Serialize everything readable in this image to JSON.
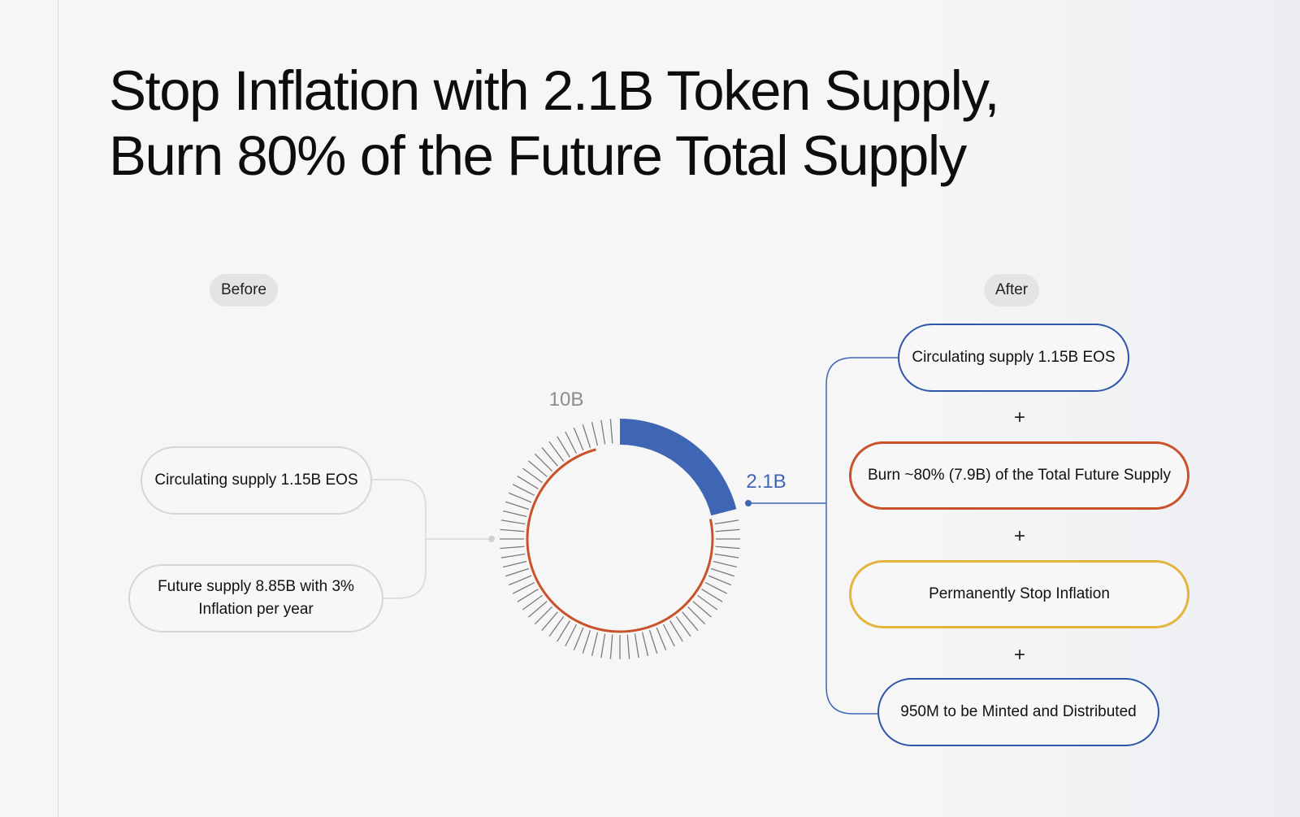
{
  "title": {
    "line1": "Stop Inflation with 2.1B Token Supply,",
    "line2": "Burn 80% of the Future Total Supply"
  },
  "before": {
    "label": "Before",
    "items": [
      "Circulating supply 1.15B EOS",
      "Future supply 8.85B with 3% Inflation per year"
    ]
  },
  "after": {
    "label": "After",
    "items": [
      "Circulating supply 1.15B EOS",
      "Burn ~80% (7.9B) of the Total Future Supply",
      "Permanently Stop Inflation",
      "950M to be Minted and Distributed"
    ],
    "operator": "+"
  },
  "gauge": {
    "total_label": "10B",
    "highlight_label": "2.1B",
    "total": 10,
    "highlight": 2.1
  },
  "colors": {
    "blue": "#3f66b5",
    "orange": "#c9522a",
    "yellow": "#e3b53d",
    "grey": "#d6d6d6"
  }
}
